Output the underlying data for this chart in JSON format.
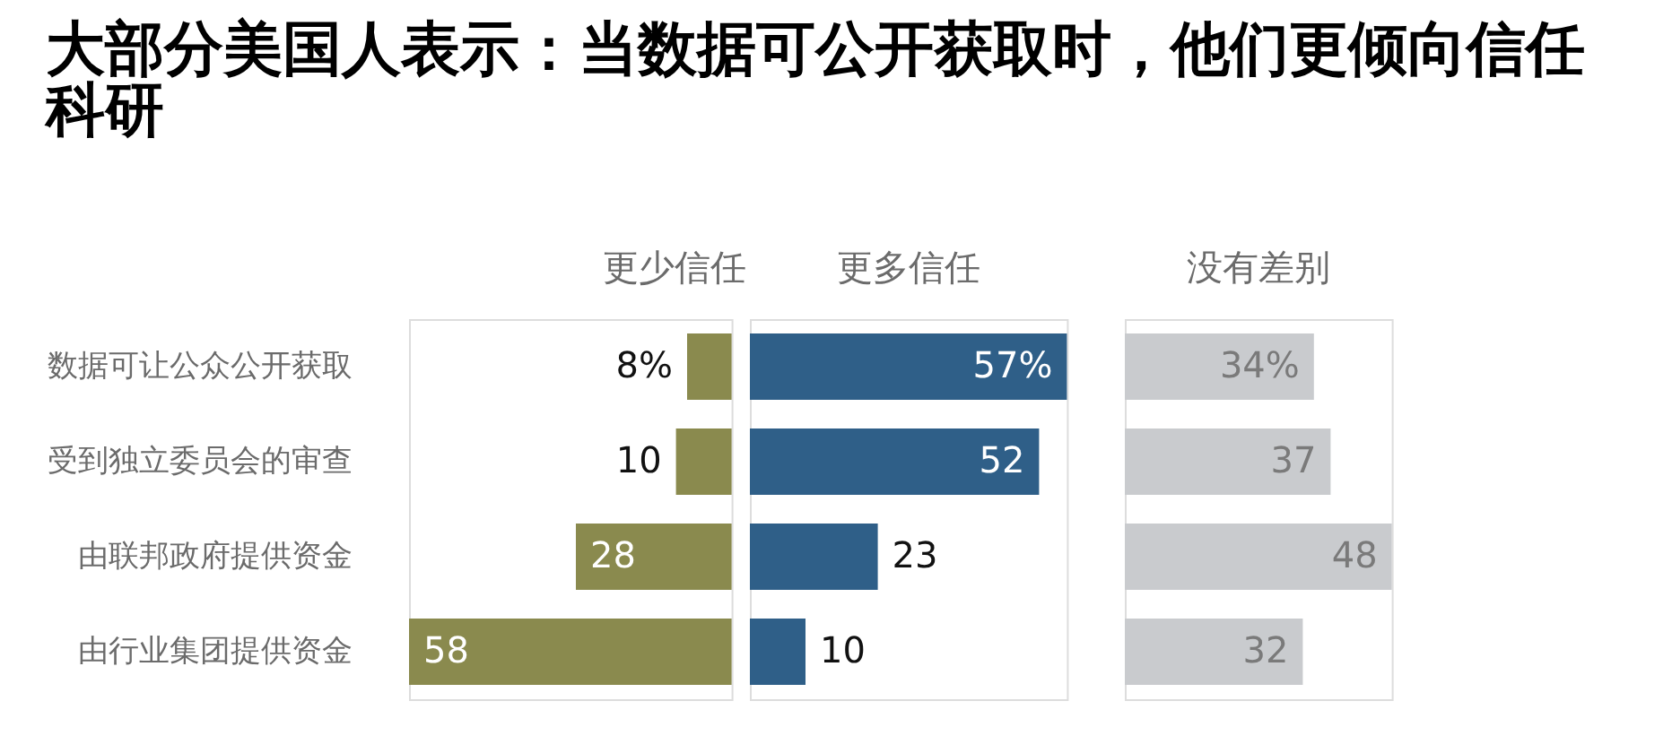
{
  "chart_data": [
    {
      "type": "bar",
      "orientation": "horizontal",
      "title": "大部分美国人表示：当数据可公开获取时，他们更倾向信任科研",
      "categories": [
        "数据可让公众公开获取",
        "受到独立委员会的审查",
        "由联邦政府提供资金",
        "由行业集团提供资金"
      ],
      "xlim": [
        58,
        0
      ],
      "tick_labels": "y",
      "series": [
        {
          "name": "更少信任",
          "color": "#8a8a4e",
          "values": [
            8,
            10,
            28,
            58
          ],
          "value_labels": [
            "8%",
            "10",
            "28",
            "58"
          ]
        }
      ]
    },
    {
      "type": "bar",
      "orientation": "horizontal",
      "categories": [
        null,
        null,
        null,
        null
      ],
      "xlim": [
        0,
        57
      ],
      "tick_labels": false,
      "series": [
        {
          "name": "更多信任",
          "color": "#2f5f88",
          "values": [
            57,
            52,
            23,
            10
          ],
          "value_labels": [
            "57%",
            "52",
            "23",
            "10"
          ]
        }
      ]
    },
    {
      "type": "bar",
      "orientation": "horizontal",
      "categories": [
        null,
        null,
        null,
        null
      ],
      "xlim": [
        0,
        48
      ],
      "tick_labels": false,
      "series": [
        {
          "name": "没有差别",
          "color": "#c9cbce",
          "values": [
            34,
            37,
            48,
            32
          ],
          "value_labels": [
            "34%",
            "37",
            "48",
            "32"
          ]
        }
      ]
    }
  ]
}
